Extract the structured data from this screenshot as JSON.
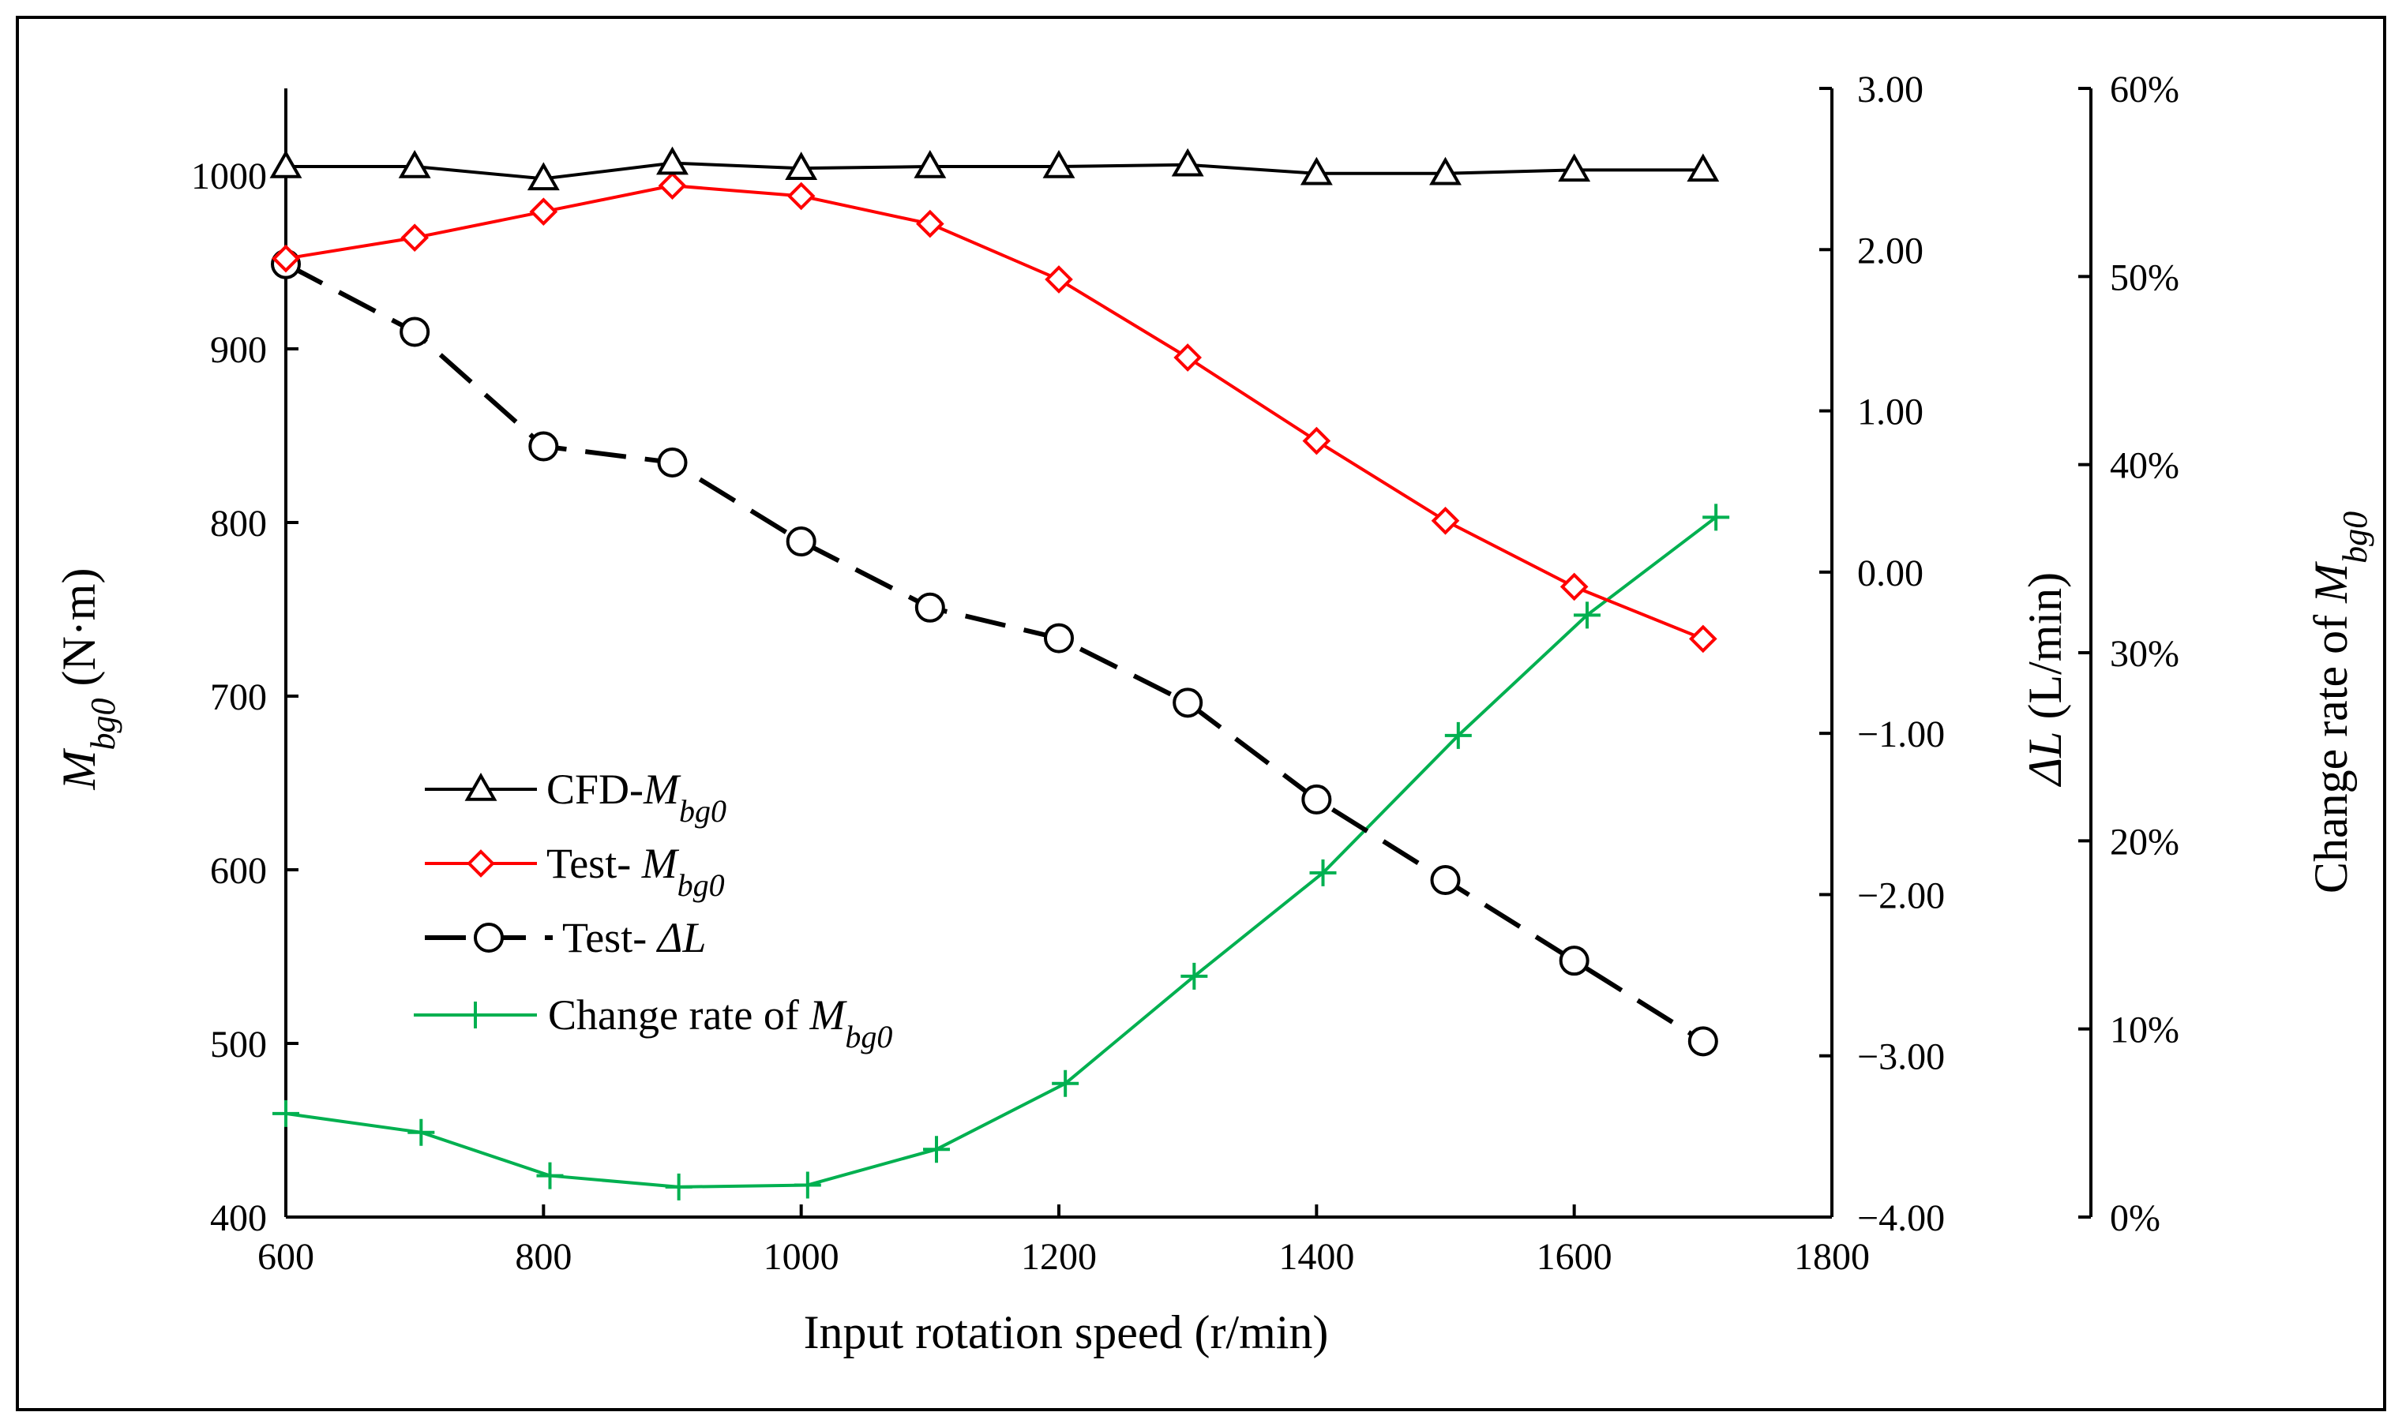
{
  "chart_data": {
    "type": "line",
    "title": "",
    "xlabel": "Input rotation speed (r/min)",
    "xlim": [
      600,
      1800
    ],
    "xticks": [
      600,
      800,
      1000,
      1200,
      1400,
      1600,
      1800
    ],
    "y_left": {
      "label_var": "M",
      "label_sub": "bg0",
      "label_unit": " (N·m)",
      "lim": [
        400,
        1050
      ],
      "ticks": [
        400,
        500,
        600,
        700,
        800,
        900,
        1000
      ]
    },
    "y_right1": {
      "label_var": "ΔL",
      "label_unit": " (L/min)",
      "lim": [
        -4.0,
        3.0
      ],
      "ticks": [
        "-4.00",
        "-3.00",
        "-2.00",
        "-1.00",
        "0.00",
        "1.00",
        "2.00",
        "3.00"
      ]
    },
    "y_right2": {
      "label_prefix": "Change rate of ",
      "label_var": "M",
      "label_sub": "bg0",
      "lim": [
        0,
        60
      ],
      "ticks": [
        "0%",
        "10%",
        "20%",
        "30%",
        "40%",
        "50%",
        "60%"
      ]
    },
    "series": [
      {
        "name": "CFD-",
        "name_var": "M",
        "name_sub": "bg0",
        "axis": "left",
        "marker": "triangle",
        "color": "#000000",
        "dash": "solid",
        "x": [
          600,
          700,
          800,
          900,
          1000,
          1100,
          1200,
          1300,
          1400,
          1500,
          1600,
          1700
        ],
        "values": [
          1005,
          1005,
          998,
          1007,
          1004,
          1005,
          1005,
          1006,
          1001,
          1001,
          1003,
          1003
        ]
      },
      {
        "name": "Test- ",
        "name_var": "M",
        "name_sub": "bg0",
        "axis": "left",
        "marker": "diamond",
        "color": "#ff0000",
        "dash": "solid",
        "x": [
          600,
          700,
          800,
          900,
          1000,
          1100,
          1200,
          1300,
          1400,
          1500,
          1600,
          1700
        ],
        "values": [
          952,
          964,
          979,
          994,
          988,
          972,
          940,
          895,
          847,
          801,
          763,
          733
        ]
      },
      {
        "name": "Test- ",
        "name_var": "ΔL",
        "name_sub": "",
        "axis": "right1",
        "marker": "circle",
        "color": "#000000",
        "dash": "long-dash",
        "x": [
          600,
          700,
          800,
          900,
          1000,
          1100,
          1200,
          1300,
          1400,
          1500,
          1600,
          1700
        ],
        "values": [
          1.91,
          1.49,
          0.78,
          0.68,
          0.19,
          -0.22,
          -0.41,
          -0.81,
          -1.41,
          -1.91,
          -2.41,
          -2.91
        ]
      },
      {
        "name": "Change rate of ",
        "name_var": "M",
        "name_sub": "bg0",
        "axis": "right2",
        "marker": "plus",
        "color": "#00b050",
        "dash": "solid",
        "x": [
          600,
          705,
          805,
          905,
          1005,
          1105,
          1205,
          1305,
          1405,
          1510,
          1610,
          1710
        ],
        "values": [
          5.5,
          4.5,
          2.2,
          1.6,
          1.7,
          3.6,
          7.1,
          12.8,
          18.3,
          25.6,
          32.0,
          37.2
        ]
      }
    ]
  }
}
